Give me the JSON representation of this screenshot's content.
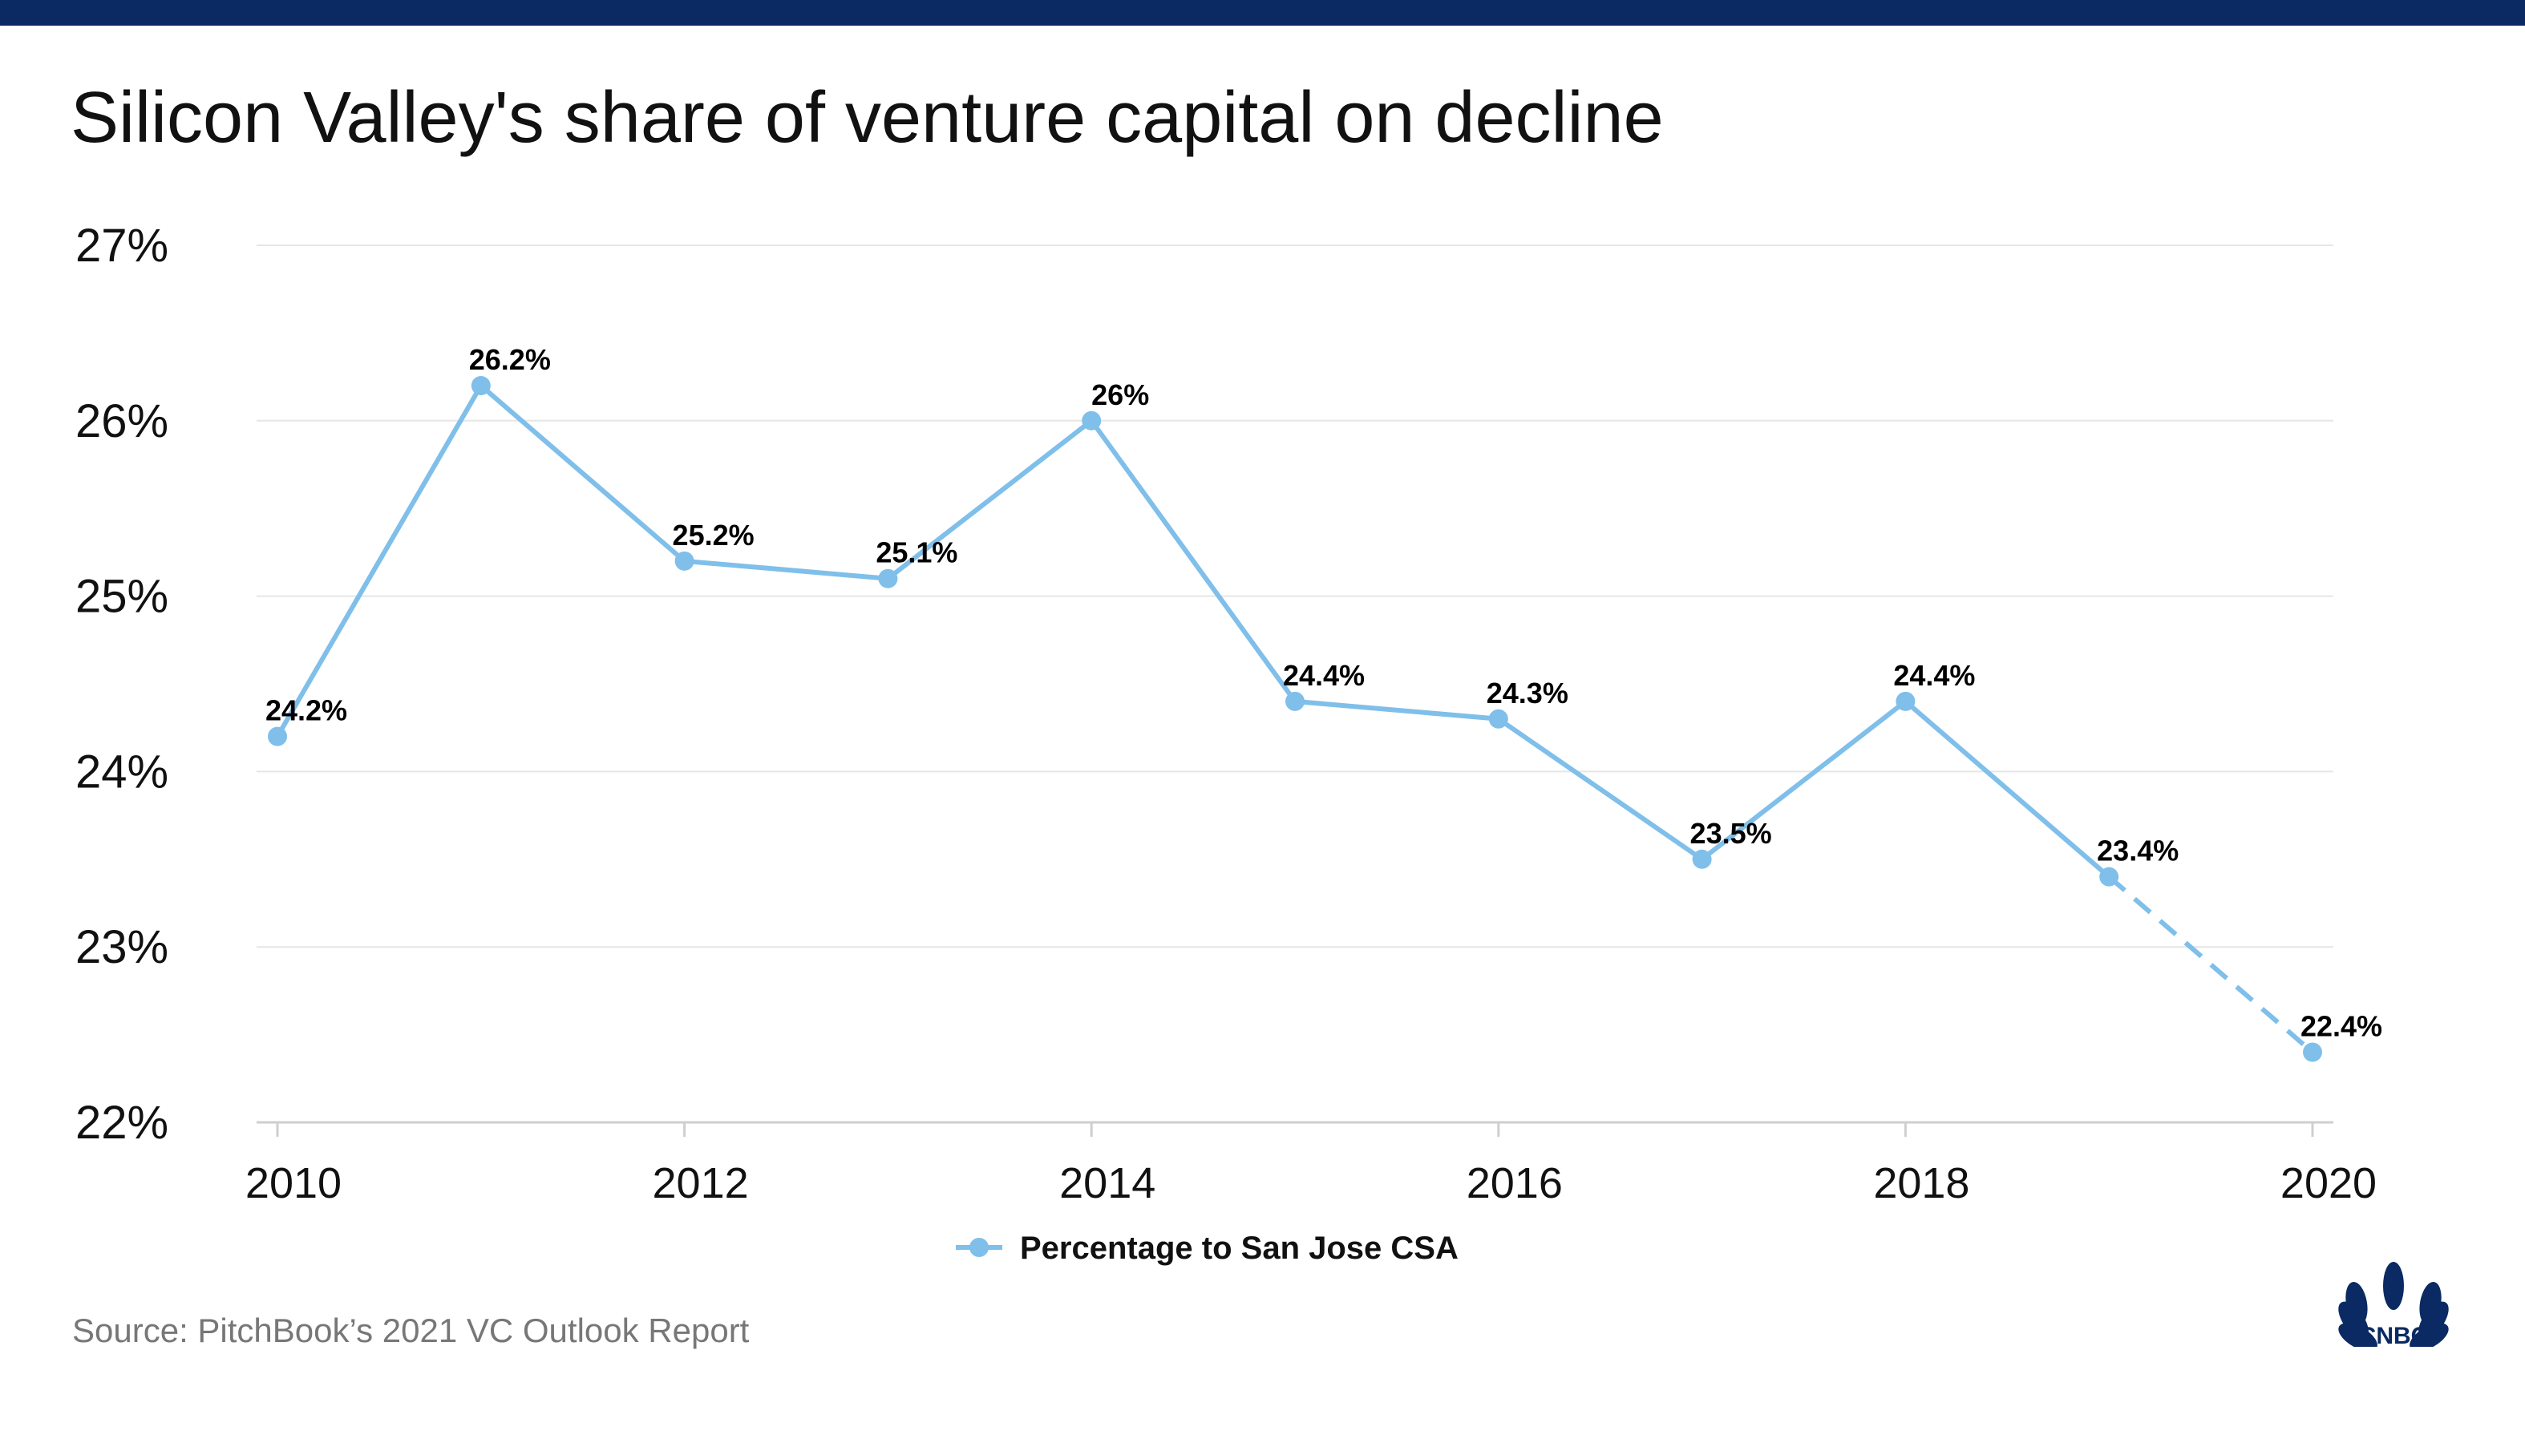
{
  "title": "Silicon Valley's share of venture capital on decline",
  "source": "Source: PitchBook’s 2021 VC Outlook Report",
  "logo_text": "CNBC",
  "colors": {
    "line": "#7fbfea",
    "topbar": "#0b2a63",
    "grid": "#e6e6e6",
    "text": "#111111"
  },
  "chart_data": {
    "type": "line",
    "title": "Silicon Valley's share of venture capital on decline",
    "xlabel": "",
    "ylabel": "",
    "x": [
      2010,
      2011,
      2012,
      2013,
      2014,
      2015,
      2016,
      2017,
      2018,
      2019,
      2020
    ],
    "series": [
      {
        "name": "Percentage to San Jose CSA",
        "values": [
          24.2,
          26.2,
          25.2,
          25.1,
          26.0,
          24.4,
          24.3,
          23.5,
          24.4,
          23.4,
          22.4
        ],
        "labels": [
          "24.2%",
          "26.2%",
          "25.2%",
          "25.1%",
          "26%",
          "24.4%",
          "24.3%",
          "23.5%",
          "24.4%",
          "23.4%",
          "22.4%"
        ],
        "dashed_from_index": 9
      }
    ],
    "ylim": [
      22,
      27
    ],
    "yticks": [
      22,
      23,
      24,
      25,
      26,
      27
    ],
    "ytick_labels": [
      "22%",
      "23%",
      "24%",
      "25%",
      "26%",
      "27%"
    ],
    "xticks": [
      2010,
      2012,
      2014,
      2016,
      2018,
      2020
    ],
    "xtick_labels": [
      "2010",
      "2012",
      "2014",
      "2016",
      "2018",
      "2020"
    ],
    "grid": true,
    "legend": {
      "position": "bottom-center",
      "entries": [
        "Percentage to San Jose CSA"
      ]
    }
  }
}
